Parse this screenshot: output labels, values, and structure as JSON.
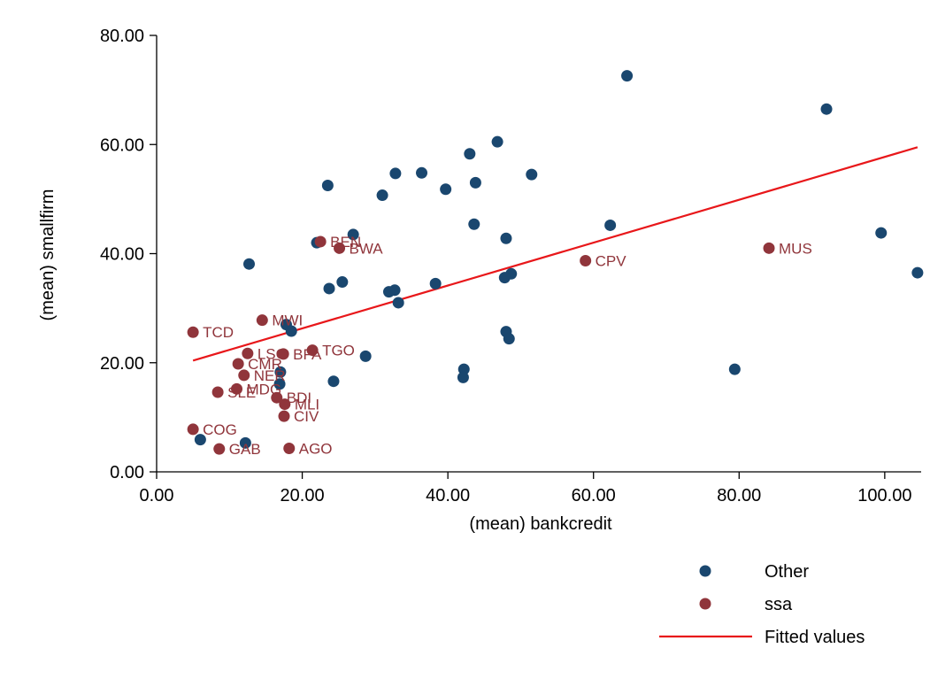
{
  "chart_data": {
    "type": "scatter",
    "xlabel": "(mean) bankcredit",
    "ylabel": "(mean) smallfirm",
    "xlim": [
      0,
      105
    ],
    "ylim": [
      0,
      80
    ],
    "xticks": [
      0,
      20,
      40,
      60,
      80,
      100
    ],
    "yticks": [
      0,
      20,
      40,
      60,
      80
    ],
    "xtick_labels": [
      "0.00",
      "20.00",
      "40.00",
      "60.00",
      "80.00",
      "100.00"
    ],
    "ytick_labels": [
      "0.00",
      "20.00",
      "40.00",
      "60.00",
      "80.00"
    ],
    "grid": false,
    "legend_position": "bottom-right",
    "colors": {
      "Other": "#1a476f",
      "ssa": "#90353b",
      "Fitted values": "#e8171a"
    },
    "series": [
      {
        "name": "Other",
        "kind": "scatter",
        "points": [
          [
            64.6,
            72.6
          ],
          [
            92.0,
            66.5
          ],
          [
            46.8,
            60.5
          ],
          [
            43.0,
            58.3
          ],
          [
            32.8,
            54.7
          ],
          [
            36.4,
            54.8
          ],
          [
            51.5,
            54.5
          ],
          [
            43.8,
            53.0
          ],
          [
            23.5,
            52.5
          ],
          [
            39.7,
            51.8
          ],
          [
            31.0,
            50.7
          ],
          [
            43.6,
            45.4
          ],
          [
            62.3,
            45.2
          ],
          [
            27.0,
            43.5
          ],
          [
            48.0,
            42.8
          ],
          [
            22.0,
            42.0
          ],
          [
            99.5,
            43.8
          ],
          [
            12.7,
            38.1
          ],
          [
            104.5,
            36.5
          ],
          [
            48.7,
            36.3
          ],
          [
            47.8,
            35.6
          ],
          [
            25.5,
            34.8
          ],
          [
            38.3,
            34.5
          ],
          [
            23.7,
            33.6
          ],
          [
            32.7,
            33.3
          ],
          [
            31.9,
            33.0
          ],
          [
            33.2,
            31.0
          ],
          [
            17.8,
            27.0
          ],
          [
            18.5,
            25.8
          ],
          [
            48.0,
            25.7
          ],
          [
            48.4,
            24.4
          ],
          [
            28.7,
            21.2
          ],
          [
            79.4,
            18.8
          ],
          [
            42.2,
            18.8
          ],
          [
            42.1,
            17.3
          ],
          [
            24.3,
            16.6
          ],
          [
            17.0,
            18.3
          ],
          [
            16.9,
            16.1
          ],
          [
            6.0,
            5.9
          ],
          [
            12.2,
            5.3
          ]
        ]
      },
      {
        "name": "ssa",
        "kind": "scatter",
        "points": [
          [
            22.5,
            42.2
          ],
          [
            25.1,
            41.0
          ],
          [
            84.1,
            41.0
          ],
          [
            58.9,
            38.7
          ],
          [
            14.5,
            27.8
          ],
          [
            5.0,
            25.6
          ],
          [
            21.4,
            22.3
          ],
          [
            17.4,
            21.6
          ],
          [
            12.5,
            21.7
          ],
          [
            11.2,
            19.8
          ],
          [
            12.0,
            17.7
          ],
          [
            11.0,
            15.2
          ],
          [
            8.4,
            14.6
          ],
          [
            16.5,
            13.6
          ],
          [
            17.6,
            12.4
          ],
          [
            17.5,
            10.2
          ],
          [
            5.0,
            7.8
          ],
          [
            8.6,
            4.2
          ],
          [
            18.2,
            4.3
          ]
        ],
        "labels": [
          "BEN",
          "BWA",
          "MUS",
          "CPV",
          "MWI",
          "TCD",
          "TGO",
          "BFA",
          "LSO",
          "CMR",
          "NER",
          "MDG",
          "SLE",
          "BDI",
          "MLI",
          "CIV",
          "COG",
          "GAB",
          "AGO"
        ]
      },
      {
        "name": "Fitted values",
        "kind": "line",
        "x": [
          5.0,
          104.5
        ],
        "y": [
          20.4,
          59.5
        ]
      }
    ]
  }
}
